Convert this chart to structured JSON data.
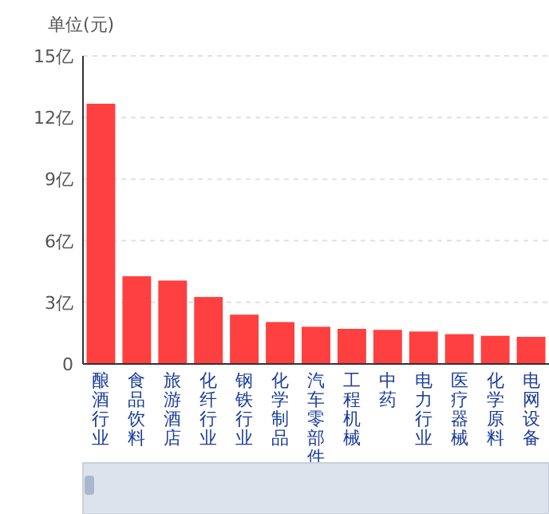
{
  "chart_data": {
    "type": "bar",
    "ylabel": "单位(元)",
    "categories": [
      "酿酒行业",
      "食品饮料",
      "旅游酒店",
      "化纤行业",
      "钢铁行业",
      "化学制品",
      "汽车零部件",
      "工程机械",
      "中药",
      "电力行业",
      "医疗器械",
      "化学原料",
      "电网设备"
    ],
    "values": [
      12.67,
      4.27,
      4.06,
      3.26,
      2.4,
      2.04,
      1.81,
      1.71,
      1.66,
      1.58,
      1.45,
      1.37,
      1.32
    ],
    "color": "#ff4040",
    "ylim": [
      0,
      15
    ],
    "yticks": [
      0,
      {
        "value": 3,
        "label": "3亿"
      },
      {
        "value": 6,
        "label": "6亿"
      },
      {
        "value": 9,
        "label": "9亿"
      },
      {
        "value": 12,
        "label": "12亿"
      },
      {
        "value": 15,
        "label": "15亿"
      }
    ],
    "grid": "y"
  }
}
